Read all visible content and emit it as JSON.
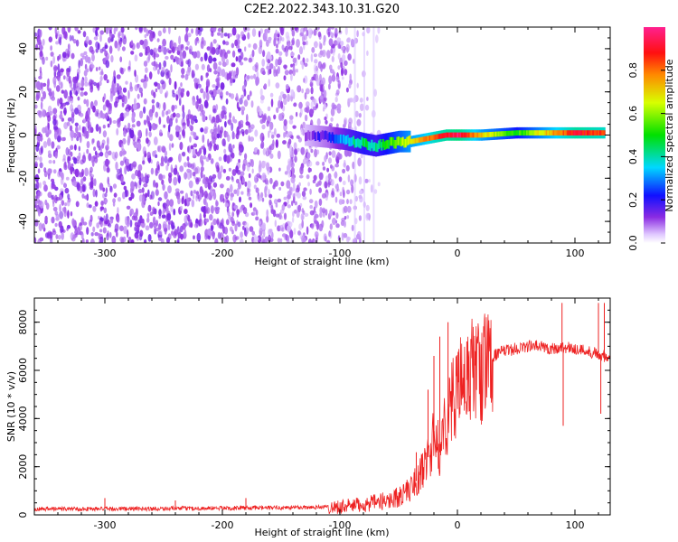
{
  "title": "C2E2.2022.343.10.31.G20",
  "chart_data": [
    {
      "type": "heatmap",
      "xlabel": "Height of straight line (km)",
      "ylabel": "Frequency (Hz)",
      "xlim": [
        -360,
        130
      ],
      "ylim": [
        -50,
        50
      ],
      "x_ticks": [
        -300,
        -200,
        -100,
        0,
        100
      ],
      "y_ticks": [
        -40,
        -20,
        0,
        20,
        40
      ],
      "colorbar": {
        "label": "Normalized spectral amplitude",
        "range": [
          0,
          1
        ],
        "ticks": [
          "0.0",
          "0.2",
          "0.4",
          "0.6",
          "0.8"
        ],
        "colormap": "rainbow: white/violet (0) → blue → cyan → green → yellow → red → magenta (1)"
      },
      "signal_trace": {
        "description": "narrow spectral line near 0 Hz, noisy broadband speckle below about -110 km",
        "x": [
          -130,
          -110,
          -95,
          -80,
          -70,
          -60,
          -50,
          -40,
          -30,
          -20,
          -10,
          0,
          20,
          50,
          80,
          100,
          125
        ],
        "frequency": [
          0,
          -1,
          -2,
          -4,
          -5,
          -4,
          -3,
          -3,
          -2,
          -1,
          0,
          0,
          0,
          1,
          1,
          1,
          1
        ],
        "amplitude": [
          0.1,
          0.2,
          0.35,
          0.45,
          0.4,
          0.5,
          0.6,
          0.7,
          0.75,
          0.85,
          0.9,
          0.95,
          0.7,
          0.5,
          0.75,
          0.9,
          0.85
        ]
      }
    },
    {
      "type": "line",
      "xlabel": "Height of straight line (km)",
      "ylabel": "SNR (10 * v/v)",
      "xlim": [
        -360,
        130
      ],
      "ylim": [
        0,
        9000
      ],
      "x_ticks": [
        -300,
        -200,
        -100,
        0,
        100
      ],
      "y_ticks": [
        0,
        2000,
        4000,
        6000,
        8000
      ],
      "color": "#ee2222",
      "series": [
        {
          "x": [
            -360,
            -300,
            -250,
            -200,
            -150,
            -110,
            -100,
            -90,
            -80,
            -70,
            -60,
            -50,
            -45,
            -40,
            -35,
            -30,
            -25,
            -20,
            -15,
            -10,
            -5,
            0,
            5,
            10,
            15,
            20,
            25,
            30,
            40,
            50,
            60,
            70,
            80,
            90,
            100,
            110,
            120,
            125,
            130
          ],
          "y": [
            250,
            250,
            260,
            280,
            300,
            330,
            340,
            380,
            430,
            500,
            600,
            750,
            900,
            1100,
            1400,
            1800,
            2400,
            3200,
            2600,
            3900,
            4600,
            5400,
            5300,
            5800,
            6200,
            5800,
            6300,
            6600,
            6800,
            6900,
            7000,
            7000,
            6900,
            6950,
            6900,
            6800,
            6700,
            6600,
            6600
          ]
        }
      ],
      "spikes": [
        {
          "x": -300,
          "y": 700
        },
        {
          "x": -240,
          "y": 600
        },
        {
          "x": -180,
          "y": 700
        },
        {
          "x": -35,
          "y": 2600
        },
        {
          "x": -25,
          "y": 5200
        },
        {
          "x": -20,
          "y": 6600
        },
        {
          "x": -15,
          "y": 7400
        },
        {
          "x": -8,
          "y": 8000
        },
        {
          "x": 8,
          "y": 7200
        },
        {
          "x": 89,
          "y": 8800
        },
        {
          "x": 90,
          "y": 3700
        },
        {
          "x": 120,
          "y": 8800
        },
        {
          "x": 122,
          "y": 4200
        },
        {
          "x": 125,
          "y": 8800
        }
      ]
    }
  ]
}
